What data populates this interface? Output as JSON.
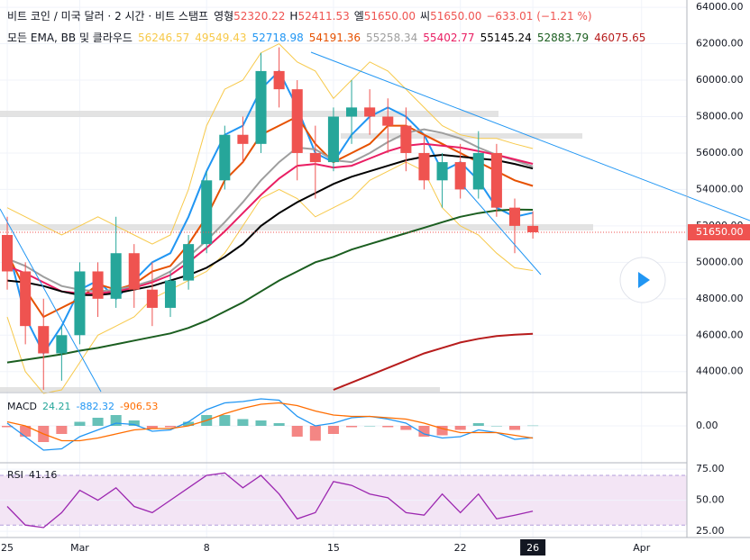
{
  "chart_data": [
    {
      "type": "candlestick",
      "title": "비트 코인 / 미국 달러 · 2 시간 · 비트 스탬프",
      "ohlc": [
        [
          "영형",
          "52320.22"
        ],
        [
          "H",
          "52411.53"
        ],
        [
          "엘",
          "51650.00"
        ],
        [
          "씨",
          "51650.00"
        ]
      ],
      "change": "−633.01 (−1.21 %)",
      "indicator_label": "모든 EMA, BB 및 클라우드",
      "last_label": "51650.00",
      "x": [
        0,
        1,
        2,
        3,
        4,
        5,
        6,
        7,
        8,
        9,
        10,
        11,
        12,
        13,
        14,
        15,
        16,
        17,
        18,
        19,
        20,
        21,
        22,
        23,
        24,
        25,
        26,
        27,
        28,
        29
      ],
      "xlim": [
        -0.4,
        37.5
      ],
      "xticks": [
        {
          "value": 0,
          "label": "25"
        },
        {
          "value": 4,
          "label": "Mar"
        },
        {
          "value": 11,
          "label": "8"
        },
        {
          "value": 18,
          "label": "15"
        },
        {
          "value": 25,
          "label": "22"
        },
        {
          "value": 29,
          "label": "26"
        },
        {
          "value": 35,
          "label": "Apr"
        }
      ],
      "ylim": [
        42900,
        64400
      ],
      "yticks": [
        {
          "value": 64000,
          "label": "64000.00"
        },
        {
          "value": 62000,
          "label": "62000.00"
        },
        {
          "value": 60000,
          "label": "60000.00"
        },
        {
          "value": 58000,
          "label": "58000.00"
        },
        {
          "value": 56000,
          "label": "56000.00"
        },
        {
          "value": 54000,
          "label": "54000.00"
        },
        {
          "value": 52000,
          "label": "52000.00"
        },
        {
          "value": 50000,
          "label": "50000.00"
        },
        {
          "value": 48000,
          "label": "48000.00"
        },
        {
          "value": 46000,
          "label": "46000.00"
        },
        {
          "value": 44000,
          "label": "44000.00"
        }
      ],
      "grid": true,
      "up_color": "#26a69a",
      "down_color": "#ef5350",
      "open": [
        51500,
        49500,
        46500,
        45000,
        46000,
        49500,
        48000,
        50500,
        48500,
        47500,
        49000,
        51000,
        54500,
        57000,
        56500,
        60500,
        59500,
        56000,
        55500,
        58000,
        58500,
        58000,
        57500,
        56000,
        54500,
        55500,
        54000,
        56000,
        53000,
        52000
      ],
      "high": [
        52500,
        50000,
        48000,
        46500,
        50000,
        50000,
        52500,
        51000,
        50000,
        49500,
        51500,
        55000,
        57500,
        58000,
        61500,
        61800,
        60000,
        57500,
        58500,
        60000,
        59500,
        59000,
        58500,
        57000,
        56000,
        56500,
        57200,
        56500,
        53500,
        52800
      ],
      "low": [
        48500,
        45500,
        43000,
        43500,
        45500,
        47000,
        47500,
        47500,
        46500,
        47000,
        48500,
        50500,
        54000,
        55500,
        56000,
        58500,
        54500,
        53500,
        55000,
        56500,
        57000,
        56000,
        55000,
        54000,
        53000,
        53500,
        53500,
        52500,
        50500,
        51300
      ],
      "close": [
        49500,
        46500,
        45000,
        46000,
        49500,
        48000,
        50500,
        48500,
        47500,
        49000,
        51000,
        54500,
        57000,
        56500,
        60500,
        59500,
        56000,
        55500,
        58000,
        58500,
        58000,
        57500,
        56000,
        54500,
        55500,
        54000,
        56000,
        53000,
        52000,
        51650
      ],
      "series": [
        {
          "color": "#f7c94a",
          "values": [
            53000,
            52500,
            52000,
            51500,
            52000,
            52500,
            52000,
            51500,
            51000,
            51500,
            54000,
            57500,
            59500,
            60000,
            61500,
            62000,
            61000,
            60500,
            59000,
            60000,
            61000,
            60500,
            59500,
            58500,
            57500,
            57000,
            56800,
            56800,
            56500,
            56246.57
          ]
        },
        {
          "color": "#f7c94a",
          "values": [
            47000,
            44000,
            42800,
            43000,
            44500,
            46000,
            46500,
            47000,
            48000,
            48500,
            49000,
            49500,
            50500,
            52000,
            53500,
            54000,
            53500,
            52500,
            53000,
            53500,
            54500,
            55000,
            55500,
            55000,
            53000,
            52000,
            51500,
            50500,
            49700,
            49549.43
          ]
        },
        {
          "color": "#2196f3",
          "values": [
            51000,
            47000,
            45000,
            46500,
            48500,
            49000,
            48000,
            49000,
            50000,
            50500,
            52500,
            55000,
            57000,
            57500,
            59500,
            60500,
            58500,
            56000,
            55500,
            57000,
            58000,
            58500,
            58000,
            57000,
            55000,
            55500,
            54500,
            53000,
            52500,
            52718.98
          ]
        },
        {
          "color": "#e65100",
          "values": [
            50500,
            48500,
            47000,
            47500,
            48000,
            48800,
            48500,
            48800,
            49500,
            49800,
            51000,
            52500,
            54500,
            55500,
            57000,
            57500,
            58000,
            56500,
            55500,
            56000,
            56500,
            57500,
            57500,
            57000,
            56500,
            56000,
            55500,
            55000,
            54500,
            54191.36
          ]
        },
        {
          "color": "#9e9e9e",
          "values": [
            50200,
            49800,
            49200,
            48700,
            48500,
            48400,
            48500,
            48700,
            49000,
            49500,
            50300,
            51200,
            52200,
            53300,
            54500,
            55500,
            56300,
            56200,
            55600,
            55500,
            56000,
            56600,
            57100,
            57300,
            57100,
            56800,
            56300,
            55900,
            55600,
            55258.34
          ]
        },
        {
          "color": "#e91e63",
          "values": [
            49800,
            49400,
            48900,
            48400,
            48300,
            48300,
            48400,
            48600,
            48900,
            49300,
            50000,
            50800,
            51700,
            52700,
            53700,
            54600,
            55300,
            55400,
            55200,
            55300,
            55700,
            56100,
            56400,
            56500,
            56400,
            56300,
            56100,
            55900,
            55650,
            55402.77
          ]
        },
        {
          "color": "#000000",
          "values": [
            49000,
            48900,
            48700,
            48400,
            48200,
            48200,
            48300,
            48500,
            48700,
            49000,
            49300,
            49700,
            50300,
            51000,
            52000,
            52700,
            53300,
            53800,
            54300,
            54700,
            55000,
            55300,
            55600,
            55800,
            55900,
            55800,
            55700,
            55600,
            55400,
            55145.24
          ]
        },
        {
          "color": "#1b5e20",
          "values": [
            44500,
            44650,
            44800,
            44950,
            45150,
            45300,
            45500,
            45700,
            45900,
            46100,
            46400,
            46800,
            47300,
            47800,
            48400,
            49000,
            49500,
            50000,
            50300,
            50700,
            51000,
            51300,
            51600,
            51900,
            52200,
            52500,
            52700,
            52850,
            52900,
            52883.79
          ]
        },
        {
          "color": "#b71c1c",
          "values": [
            null,
            null,
            null,
            null,
            null,
            null,
            null,
            null,
            null,
            null,
            null,
            null,
            null,
            null,
            null,
            null,
            null,
            null,
            43000,
            43400,
            43800,
            44200,
            44600,
            45000,
            45300,
            45600,
            45800,
            45950,
            46030,
            46075.65
          ]
        }
      ]
    },
    {
      "type": "macd",
      "title": "MACD",
      "ylim": [
        -2600,
        2400
      ],
      "yticks": [
        {
          "value": 0,
          "label": "0.00"
        }
      ],
      "series": [
        {
          "type": "bar",
          "color": "#26a69a",
          "negative_color": "#ef5350",
          "values": [
            -100,
            -800,
            -1200,
            -600,
            300,
            600,
            800,
            400,
            -200,
            -100,
            300,
            800,
            800,
            500,
            400,
            200,
            -800,
            -1100,
            -600,
            -100,
            0,
            -100,
            -300,
            -800,
            -700,
            -300,
            200,
            0,
            -300,
            24.21
          ]
        },
        {
          "type": "line",
          "color": "#2196f3",
          "values": [
            200,
            -800,
            -1800,
            -1700,
            -800,
            -300,
            200,
            100,
            -400,
            -300,
            300,
            1200,
            1700,
            1800,
            2000,
            1900,
            700,
            0,
            200,
            600,
            700,
            500,
            200,
            -600,
            -900,
            -800,
            -300,
            -500,
            -1000,
            -882.32
          ]
        },
        {
          "type": "line",
          "color": "#ff6d00",
          "values": [
            300,
            0,
            -600,
            -1100,
            -1100,
            -900,
            -600,
            -300,
            -200,
            -200,
            0,
            400,
            900,
            1300,
            1600,
            1700,
            1500,
            1100,
            800,
            700,
            700,
            600,
            500,
            200,
            -200,
            -500,
            -500,
            -500,
            -700,
            -906.53
          ]
        }
      ]
    },
    {
      "type": "line",
      "title": "RSI",
      "ylim": [
        20,
        78
      ],
      "yticks": [
        {
          "value": 75,
          "label": "75.00"
        },
        {
          "value": 50,
          "label": "50.00"
        },
        {
          "value": 25,
          "label": "25.00"
        }
      ],
      "band": [
        30,
        70
      ],
      "band_color": "#f3e5f5",
      "series": [
        {
          "color": "#9c27b0",
          "values": [
            45,
            30,
            28,
            40,
            58,
            50,
            60,
            45,
            40,
            50,
            60,
            70,
            72,
            60,
            70,
            55,
            35,
            40,
            65,
            62,
            55,
            52,
            40,
            38,
            55,
            40,
            55,
            35,
            38,
            41.16
          ]
        }
      ]
    }
  ]
}
